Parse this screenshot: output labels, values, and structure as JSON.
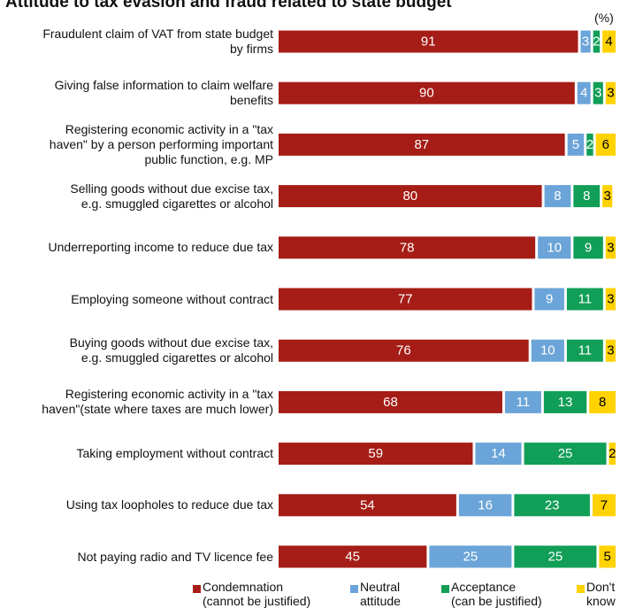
{
  "chart_data": {
    "type": "stacked-bar-horizontal",
    "title": "Attitude to tax evasion and fraud related to state budget",
    "unit_label": "(%)",
    "categories": [
      "Fraudulent claim of VAT from state budget\nby firms",
      "Giving false information to claim welfare\nbenefits",
      "Registering economic activity in a \"tax\nhaven\" by a person performing important\npublic function, e.g. MP",
      "Selling goods without due excise tax,\ne.g. smuggled cigarettes or alcohol",
      "Underreporting income to reduce due tax",
      "Employing someone without contract",
      "Buying goods without due excise tax,\ne.g. smuggled cigarettes or alcohol",
      "Registering economic activity in a \"tax\nhaven\"(state where taxes are much lower)",
      "Taking employment without contract",
      "Using tax loopholes to reduce due tax",
      "Not paying radio and TV licence fee"
    ],
    "series": [
      {
        "name": "Condemnation\n(cannot be justified)",
        "color": "#a51d16",
        "text_color": "#ffffff",
        "values": [
          91,
          90,
          87,
          80,
          78,
          77,
          76,
          68,
          59,
          54,
          45
        ]
      },
      {
        "name": "Neutral\nattitude",
        "color": "#6ba4d8",
        "text_color": "#ffffff",
        "values": [
          3,
          4,
          5,
          8,
          10,
          9,
          10,
          11,
          14,
          16,
          25
        ]
      },
      {
        "name": "Acceptance\n(can be justified)",
        "color": "#119e57",
        "text_color": "#ffffff",
        "values": [
          2,
          3,
          2,
          8,
          9,
          11,
          11,
          13,
          25,
          23,
          25
        ]
      },
      {
        "name": "Don't\nknow",
        "color": "#ffd200",
        "text_color": "#000000",
        "values": [
          4,
          3,
          6,
          3,
          3,
          3,
          3,
          8,
          2,
          7,
          5
        ]
      }
    ]
  }
}
